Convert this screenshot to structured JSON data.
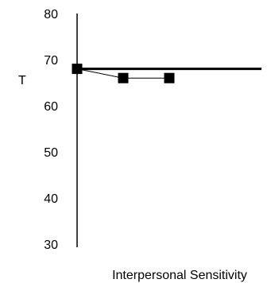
{
  "chart_data": {
    "type": "line",
    "title": "",
    "xlabel": "Interpersonal Sensitivity",
    "ylabel": "T",
    "ylim": [
      30,
      80
    ],
    "yticks": [
      30,
      40,
      50,
      60,
      70,
      80
    ],
    "grid": false,
    "legend": "none",
    "reference_line": {
      "y": 68
    },
    "series": [
      {
        "x": [
          0,
          1,
          2
        ],
        "y": [
          68,
          66,
          66
        ],
        "marker": "square",
        "color": "#000000"
      }
    ]
  }
}
